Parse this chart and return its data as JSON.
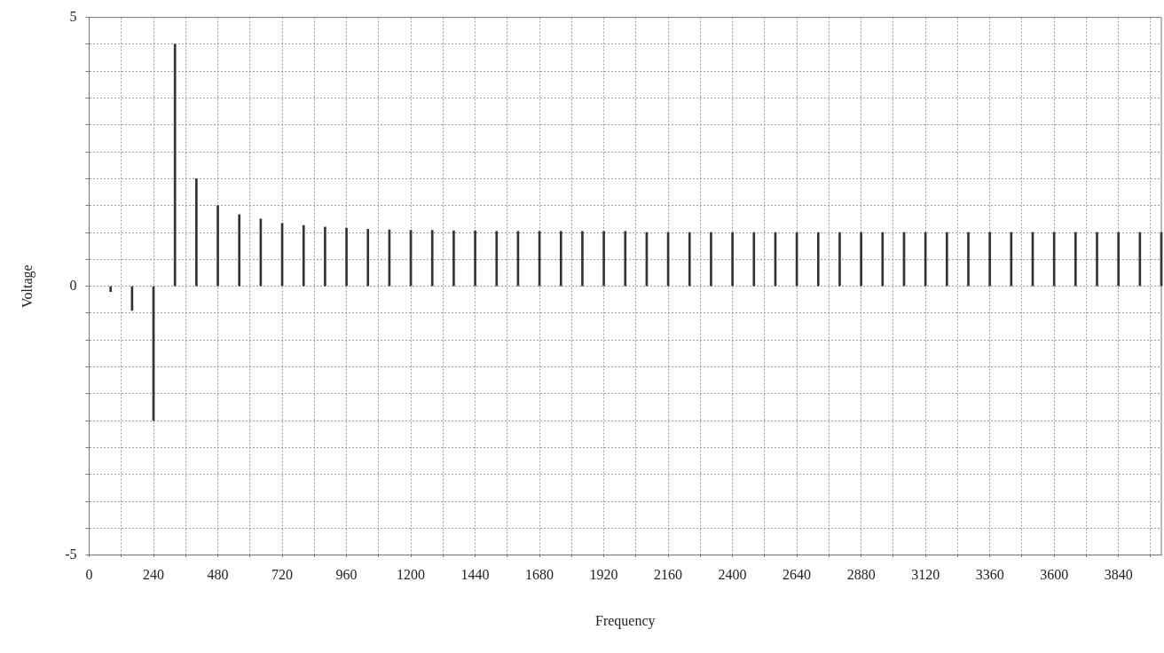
{
  "chart_data": {
    "type": "bar",
    "xlabel": "Frequency",
    "ylabel": "Voltage",
    "x": [
      80,
      160,
      240,
      320,
      400,
      480,
      560,
      640,
      720,
      800,
      880,
      960,
      1040,
      1120,
      1200,
      1280,
      1360,
      1440,
      1520,
      1600,
      1680,
      1760,
      1840,
      1920,
      2000,
      2080,
      2160,
      2240,
      2320,
      2400,
      2480,
      2560,
      2640,
      2720,
      2800,
      2880,
      2960,
      3040,
      3120,
      3200,
      3280,
      3360,
      3440,
      3520,
      3600,
      3680,
      3760,
      3840,
      3920,
      4000
    ],
    "series": [
      {
        "color": "#333333",
        "values": [
          -0.1,
          -0.45,
          -2.5,
          4.5,
          2.0,
          1.5,
          1.33,
          1.25,
          1.17,
          1.13,
          1.1,
          1.08,
          1.06,
          1.05,
          1.04,
          1.04,
          1.03,
          1.03,
          1.02,
          1.02,
          1.02,
          1.02,
          1.02,
          1.02,
          1.02,
          1.0,
          1.0,
          1.0,
          1.0,
          1.0,
          1.0,
          1.0,
          1.0,
          1.0,
          1.0,
          1.0,
          1.0,
          1.0,
          1.0,
          1.0,
          1.0,
          1.0,
          1.0,
          1.0,
          1.0,
          1.0,
          1.0,
          1.0,
          1.0,
          1.0
        ]
      }
    ],
    "xlim": [
      0,
      4000
    ],
    "xticks": [
      0,
      {
        "value": 120,
        "label": null
      },
      240,
      {
        "value": 360,
        "label": null
      },
      480,
      {
        "value": 600,
        "label": null
      },
      720,
      {
        "value": 840,
        "label": null
      },
      960,
      {
        "value": 1080,
        "label": null
      },
      1200,
      {
        "value": 1320,
        "label": null
      },
      1440,
      {
        "value": 1560,
        "label": null
      },
      1680,
      {
        "value": 1800,
        "label": null
      },
      1920,
      {
        "value": 2040,
        "label": null
      },
      2160,
      {
        "value": 2280,
        "label": null
      },
      2400,
      {
        "value": 2520,
        "label": null
      },
      2640,
      {
        "value": 2760,
        "label": null
      },
      2880,
      {
        "value": 3000,
        "label": null
      },
      3120,
      {
        "value": 3240,
        "label": null
      },
      3360,
      {
        "value": 3480,
        "label": null
      },
      3600,
      {
        "value": 3720,
        "label": null
      },
      3840,
      {
        "value": 3960,
        "label": null
      }
    ],
    "ylim": [
      -5,
      5
    ],
    "yticks": [
      -5,
      {
        "value": -4.5,
        "label": null
      },
      {
        "value": -4,
        "label": null
      },
      {
        "value": -3.5,
        "label": null
      },
      {
        "value": -3,
        "label": null
      },
      {
        "value": -2.5,
        "label": null
      },
      {
        "value": -2,
        "label": null
      },
      {
        "value": -1.5,
        "label": null
      },
      {
        "value": -1,
        "label": null
      },
      {
        "value": -0.5,
        "label": null
      },
      0,
      {
        "value": 0.5,
        "label": null
      },
      {
        "value": 1,
        "label": null
      },
      {
        "value": 1.5,
        "label": null
      },
      {
        "value": 2,
        "label": null
      },
      {
        "value": 2.5,
        "label": null
      },
      {
        "value": 3,
        "label": null
      },
      {
        "value": 3.5,
        "label": null
      },
      {
        "value": 4,
        "label": null
      },
      {
        "value": 4.5,
        "label": null
      },
      5
    ],
    "grid": true,
    "legend": false
  }
}
